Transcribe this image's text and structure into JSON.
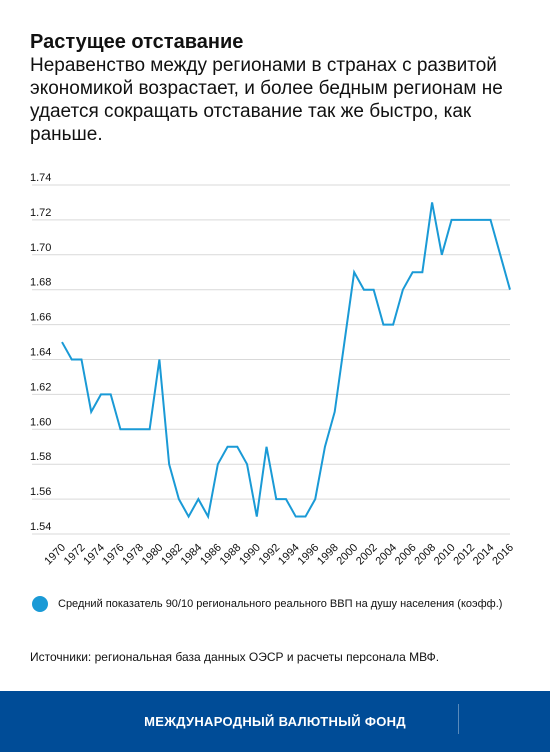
{
  "header": {
    "title": "Растущее отставание",
    "subtitle": "Неравенство между регионами в странах с развитой экономикой возрастает, и более бедным регионам не удается сокращать отставание так же быстро, как раньше."
  },
  "legend": {
    "label": "Средний показатель 90/10 регионального реального ВВП на душу населения (коэфф.)"
  },
  "source": "Источники: региональная база данных ОЭСР и расчеты персонала МВФ.",
  "footer": {
    "org": "МЕЖДУНАРОДНЫЙ ВАЛЮТНЫЙ ФОНД"
  },
  "colors": {
    "line": "#1a9ad6",
    "grid": "#d9d9d9",
    "footer_bg": "#004c97"
  },
  "chart_data": {
    "type": "line",
    "title": "Растущее отставание",
    "xlabel": "",
    "ylabel": "",
    "x": [
      1970,
      1971,
      1972,
      1973,
      1974,
      1975,
      1976,
      1977,
      1978,
      1979,
      1980,
      1981,
      1982,
      1983,
      1984,
      1985,
      1986,
      1987,
      1988,
      1989,
      1990,
      1991,
      1992,
      1993,
      1994,
      1995,
      1996,
      1997,
      1998,
      1999,
      2000,
      2001,
      2002,
      2003,
      2004,
      2005,
      2006,
      2007,
      2008,
      2009,
      2010,
      2011,
      2012,
      2013,
      2014,
      2015,
      2016
    ],
    "series": [
      {
        "name": "Средний показатель 90/10 регионального реального ВВП на душу населения (коэфф.)",
        "values": [
          1.65,
          1.64,
          1.64,
          1.61,
          1.62,
          1.62,
          1.6,
          1.6,
          1.6,
          1.6,
          1.64,
          1.58,
          1.56,
          1.55,
          1.56,
          1.55,
          1.58,
          1.59,
          1.59,
          1.58,
          1.55,
          1.59,
          1.56,
          1.56,
          1.55,
          1.55,
          1.56,
          1.59,
          1.61,
          1.65,
          1.69,
          1.68,
          1.68,
          1.66,
          1.66,
          1.68,
          1.69,
          1.69,
          1.73,
          1.7,
          1.72,
          1.72,
          1.72,
          1.72,
          1.72,
          1.7,
          1.68
        ]
      }
    ],
    "x_ticks": [
      "1970",
      "1972",
      "1974",
      "1976",
      "1978",
      "1980",
      "1982",
      "1984",
      "1986",
      "1988",
      "1990",
      "1992",
      "1994",
      "1996",
      "1998",
      "2000",
      "2002",
      "2004",
      "2006",
      "2008",
      "2010",
      "2012",
      "2014",
      "2016"
    ],
    "y_ticks": [
      "1.54",
      "1.56",
      "1.58",
      "1.60",
      "1.62",
      "1.64",
      "1.66",
      "1.68",
      "1.70",
      "1.72",
      "1.74"
    ],
    "xlim": [
      1970,
      2016
    ],
    "ylim": [
      1.54,
      1.74
    ],
    "grid": true,
    "legend_position": "bottom"
  }
}
